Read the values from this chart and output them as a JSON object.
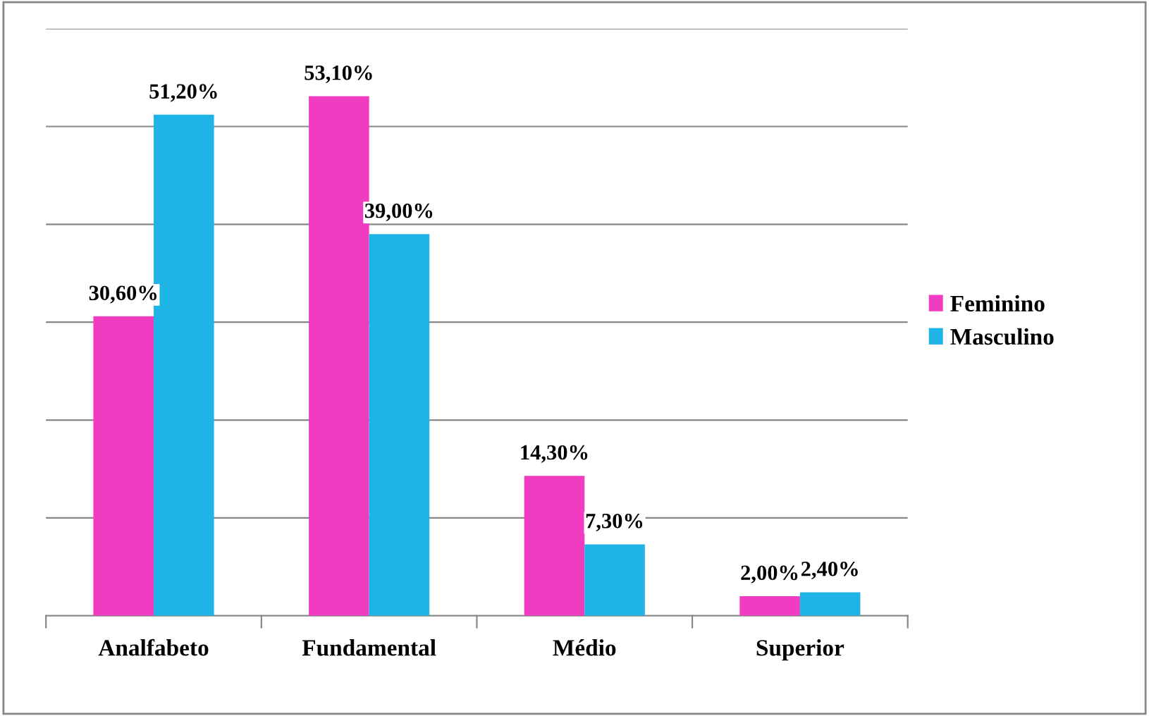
{
  "chart_data": {
    "type": "bar",
    "categories": [
      "Analfabeto",
      "Fundamental",
      "Médio",
      "Superior"
    ],
    "series": [
      {
        "name": "Feminino",
        "color": "#f03cc0",
        "values": [
          30.6,
          53.1,
          14.3,
          2.0
        ],
        "value_labels": [
          "30,60%",
          "53,10%",
          "14,30%",
          "2,00%"
        ]
      },
      {
        "name": "Masculino",
        "color": "#1eb4e6",
        "values": [
          51.2,
          39.0,
          7.3,
          2.4
        ],
        "value_labels": [
          "51,20%",
          "39,00%",
          "7,30%",
          "2,40%"
        ]
      }
    ],
    "ylim": [
      0,
      60
    ],
    "yticks": [
      {
        "value": 0,
        "label": null
      },
      {
        "value": 10,
        "label": null
      },
      {
        "value": 20,
        "label": null
      },
      {
        "value": 30,
        "label": null
      },
      {
        "value": 40,
        "label": null
      },
      {
        "value": 50,
        "label": null
      },
      {
        "value": 60,
        "label": null
      }
    ],
    "tick_labels": "x",
    "grid": "y",
    "legend": "right"
  }
}
